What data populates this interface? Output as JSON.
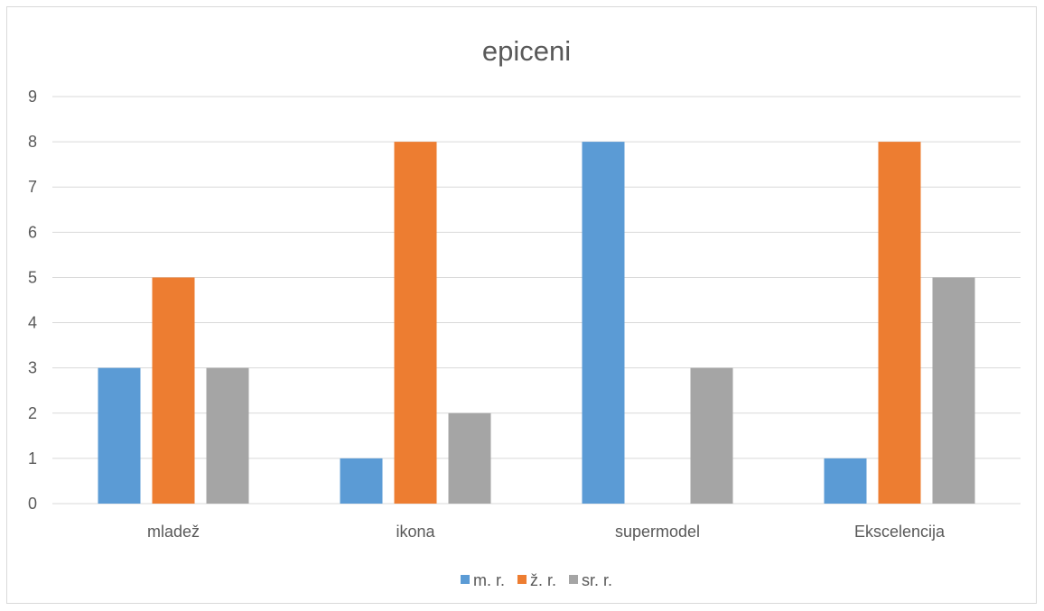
{
  "chart_data": {
    "type": "bar",
    "title": "epiceni",
    "xlabel": "",
    "ylabel": "",
    "categories": [
      "mladež",
      "ikona",
      "supermodel",
      "Ekscelencija"
    ],
    "series": [
      {
        "name": "m. r.",
        "color": "#5b9bd5",
        "values": [
          3,
          1,
          8,
          1
        ]
      },
      {
        "name": "ž. r.",
        "color": "#ed7d31",
        "values": [
          5,
          8,
          0,
          8
        ]
      },
      {
        "name": "sr. r.",
        "color": "#a5a5a5",
        "values": [
          3,
          2,
          3,
          5
        ]
      }
    ],
    "ylim": [
      0,
      9
    ],
    "yticks": [
      "0",
      "1",
      "2",
      "3",
      "4",
      "5",
      "6",
      "7",
      "8",
      "9"
    ],
    "grid": true,
    "legend_position": "bottom"
  }
}
